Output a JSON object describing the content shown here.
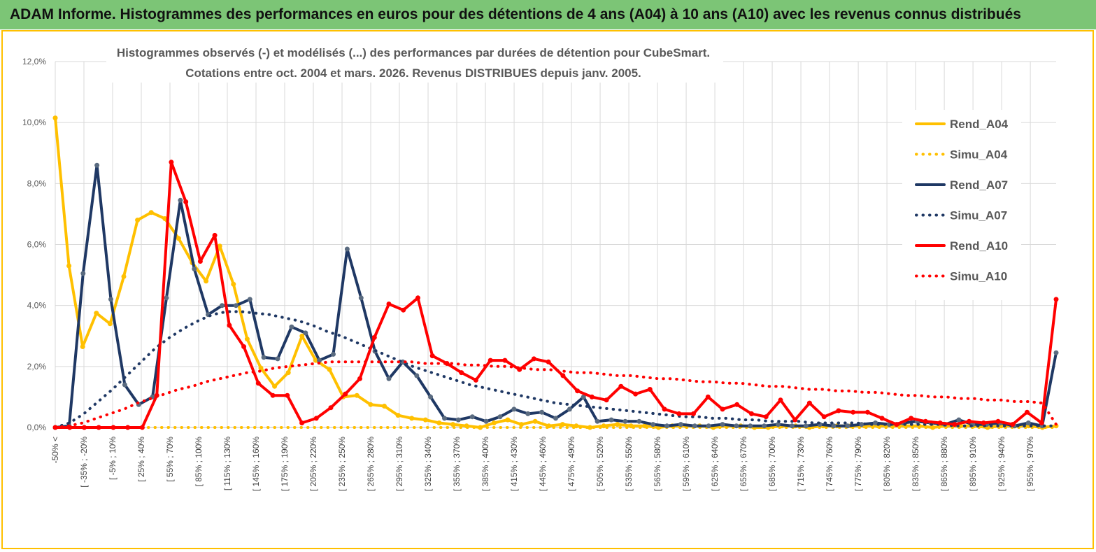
{
  "header": {
    "title": "ADAM Informe. Histogrammes des performances en euros pour des détentions de 4 ans (A04) à 10 ans (A10) avec les revenus connus distribués"
  },
  "colors": {
    "banner": "#7cc576",
    "Rend_A04": "#ffc000",
    "Rend_A07": "#1f3864",
    "Rend_A10": "#ff0000",
    "frame": "#ffc000",
    "grid": "#d9d9d9"
  },
  "chart_data": {
    "type": "line",
    "title": [
      "Histogrammes observés (-) et modélisés (...) des performances par durées de détention pour CubeSmart.",
      "Cotations entre oct. 2004 et mars. 2026. Revenus DISTRIBUES depuis janv. 2005."
    ],
    "y_ticks": [
      "0,0%",
      "2,0%",
      "4,0%",
      "6,0%",
      "8,0%",
      "10,0%",
      "12,0%"
    ],
    "ylim": [
      0,
      12
    ],
    "y_unit": "%",
    "grid": true,
    "legend_position": "right",
    "x_labels": [
      "-50% <",
      "[ -35% ; -20%",
      "[ -5% ; 10%",
      "[ 25% ; 40%",
      "[ 55% ; 70%",
      "[ 85% ; 100%",
      "[ 115% ; 130%",
      "[ 145% ; 160%",
      "[ 175% ; 190%",
      "[ 205% ; 220%",
      "[ 235% ; 250%",
      "[ 265% ; 280%",
      "[ 295% ; 310%",
      "[ 325% ; 340%",
      "[ 355% ; 370%",
      "[ 385% ; 400%",
      "[ 415% ; 430%",
      "[ 445% ; 460%",
      "[ 475% ; 490%",
      "[ 505% ; 520%",
      "[ 535% ; 550%",
      "[ 565% ; 580%",
      "[ 595% ; 610%",
      "[ 625% ; 640%",
      "[ 655% ; 670%",
      "[ 685% ; 700%",
      "[ 715% ; 730%",
      "[ 745% ; 760%",
      "[ 775% ; 790%",
      "[ 805% ; 820%",
      "[ 835% ; 850%",
      "[ 865% ; 880%",
      "[ 895% ; 910%",
      "[ 925% ; 940%",
      "[ 955% ; 970%"
    ],
    "series": [
      {
        "name": "Rend_A04",
        "style": "solid",
        "color": "#ffc000",
        "values": [
          10.15,
          5.3,
          2.65,
          3.75,
          3.4,
          4.95,
          6.8,
          7.05,
          6.85,
          6.2,
          5.4,
          4.8,
          5.95,
          4.7,
          2.9,
          1.95,
          1.35,
          1.8,
          3.0,
          2.2,
          1.9,
          1.0,
          1.05,
          0.75,
          0.7,
          0.4,
          0.3,
          0.25,
          0.15,
          0.1,
          0.05,
          0.0,
          0.15,
          0.25,
          0.1,
          0.2,
          0.05,
          0.1,
          0.05,
          0.0,
          0.05,
          0.1,
          0.05,
          0.05,
          0.0,
          0.05,
          0.05,
          0.05,
          0.0,
          0.05,
          0.05,
          0.0,
          0.0,
          0.05,
          0.05,
          0.0,
          0.05,
          0.05,
          0.05,
          0.05,
          0.05,
          0.05,
          0.05,
          0.05,
          0.0,
          0.05,
          0.05,
          0.05,
          0.0,
          0.05,
          0.05,
          0.05,
          0.0,
          0.05
        ]
      },
      {
        "name": "Simu_A04",
        "style": "dotted",
        "color": "#ffc000",
        "values": [
          0.0,
          0.0,
          0.0,
          0.0,
          0.0,
          0.0,
          0.0,
          0.0,
          0.0,
          0.0,
          0.0,
          0.0,
          0.0,
          0.0,
          0.0,
          0.0,
          0.0,
          0.0,
          0.0,
          0.0,
          0.0,
          0.0,
          0.0,
          0.0,
          0.0,
          0.0,
          0.0,
          0.0,
          0.0,
          0.0,
          0.0,
          0.0,
          0.0,
          0.0,
          0.0,
          0.0,
          0.0,
          0.0,
          0.0,
          0.0,
          0.0,
          0.0,
          0.0,
          0.0,
          0.0,
          0.0,
          0.0,
          0.0,
          0.0,
          0.0,
          0.0,
          0.0,
          0.0,
          0.0,
          0.0,
          0.0,
          0.0,
          0.0,
          0.0,
          0.0,
          0.0,
          0.0,
          0.0,
          0.0,
          0.0,
          0.0,
          0.0,
          0.0,
          0.0,
          0.0,
          0.0
        ]
      },
      {
        "name": "Rend_A07",
        "style": "solid",
        "color": "#1f3864",
        "values": [
          0.0,
          0.05,
          5.05,
          8.6,
          4.2,
          1.4,
          0.75,
          1.0,
          4.25,
          7.45,
          5.2,
          3.7,
          4.0,
          4.0,
          4.2,
          2.3,
          2.25,
          3.3,
          3.1,
          2.2,
          2.4,
          5.85,
          4.25,
          2.5,
          1.6,
          2.15,
          1.7,
          1.0,
          0.3,
          0.25,
          0.35,
          0.2,
          0.35,
          0.6,
          0.45,
          0.5,
          0.3,
          0.6,
          1.0,
          0.2,
          0.25,
          0.2,
          0.2,
          0.1,
          0.05,
          0.1,
          0.05,
          0.05,
          0.1,
          0.05,
          0.05,
          0.05,
          0.1,
          0.05,
          0.05,
          0.1,
          0.05,
          0.05,
          0.1,
          0.15,
          0.1,
          0.15,
          0.2,
          0.15,
          0.1,
          0.25,
          0.1,
          0.1,
          0.15,
          0.05,
          0.15,
          0.05,
          2.45
        ]
      },
      {
        "name": "Simu_A07",
        "style": "dotted",
        "color": "#1f3864",
        "values": [
          0.0,
          0.15,
          0.45,
          0.85,
          1.25,
          1.7,
          2.15,
          2.6,
          2.95,
          3.25,
          3.5,
          3.7,
          3.8,
          3.8,
          3.75,
          3.7,
          3.6,
          3.5,
          3.35,
          3.15,
          3.0,
          2.8,
          2.6,
          2.4,
          2.2,
          2.0,
          1.85,
          1.7,
          1.55,
          1.4,
          1.3,
          1.2,
          1.1,
          1.0,
          0.9,
          0.8,
          0.75,
          0.7,
          0.65,
          0.6,
          0.55,
          0.5,
          0.45,
          0.4,
          0.35,
          0.35,
          0.3,
          0.3,
          0.25,
          0.25,
          0.2,
          0.2,
          0.2,
          0.15,
          0.15,
          0.15,
          0.15,
          0.1,
          0.1,
          0.1,
          0.1,
          0.1,
          0.1,
          0.05,
          0.05,
          0.05,
          0.05,
          0.05,
          0.05,
          0.05,
          0.05
        ]
      },
      {
        "name": "Rend_A10",
        "style": "solid",
        "color": "#ff0000",
        "values": [
          0.0,
          0.0,
          0.0,
          0.0,
          0.0,
          0.0,
          0.0,
          1.05,
          8.7,
          7.4,
          5.45,
          6.3,
          3.35,
          2.65,
          1.45,
          1.05,
          1.05,
          0.15,
          0.3,
          0.65,
          1.1,
          1.6,
          2.95,
          4.05,
          3.85,
          4.25,
          2.35,
          2.1,
          1.8,
          1.55,
          2.2,
          2.2,
          1.9,
          2.25,
          2.15,
          1.7,
          1.2,
          1.0,
          0.9,
          1.35,
          1.1,
          1.25,
          0.6,
          0.45,
          0.45,
          1.0,
          0.6,
          0.75,
          0.45,
          0.35,
          0.9,
          0.25,
          0.8,
          0.35,
          0.55,
          0.5,
          0.5,
          0.3,
          0.1,
          0.3,
          0.2,
          0.15,
          0.1,
          0.2,
          0.15,
          0.2,
          0.1,
          0.5,
          0.15,
          4.2
        ]
      },
      {
        "name": "Simu_A10",
        "style": "dotted",
        "color": "#ff0000",
        "values": [
          0.0,
          0.05,
          0.15,
          0.3,
          0.45,
          0.6,
          0.8,
          0.95,
          1.1,
          1.25,
          1.35,
          1.5,
          1.6,
          1.7,
          1.8,
          1.85,
          1.95,
          2.0,
          2.05,
          2.1,
          2.15,
          2.15,
          2.15,
          2.15,
          2.15,
          2.15,
          2.15,
          2.1,
          2.1,
          2.1,
          2.05,
          2.05,
          2.0,
          2.0,
          1.95,
          1.9,
          1.9,
          1.85,
          1.8,
          1.8,
          1.75,
          1.7,
          1.7,
          1.65,
          1.6,
          1.6,
          1.55,
          1.5,
          1.5,
          1.45,
          1.45,
          1.4,
          1.35,
          1.35,
          1.3,
          1.25,
          1.25,
          1.2,
          1.2,
          1.15,
          1.15,
          1.1,
          1.05,
          1.05,
          1.0,
          1.0,
          0.95,
          0.95,
          0.9,
          0.9,
          0.85,
          0.85,
          0.8,
          0.1
        ]
      }
    ]
  }
}
